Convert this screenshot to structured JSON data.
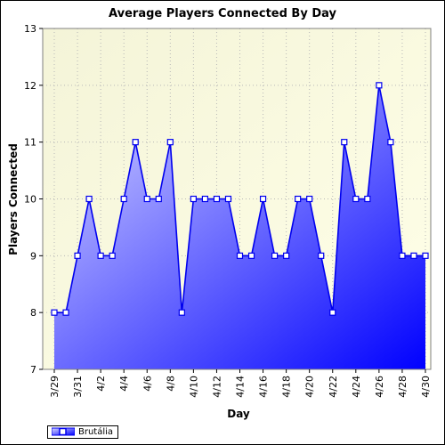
{
  "chart_data": {
    "type": "area",
    "title": "Average Players Connected By Day",
    "xlabel": "Day",
    "ylabel": "Players Connected",
    "ylim": [
      7,
      13
    ],
    "yticks": [
      7,
      8,
      9,
      10,
      11,
      12,
      13
    ],
    "x_tick_labels": [
      "3/29",
      "3/31",
      "4/2",
      "4/4",
      "4/6",
      "4/8",
      "4/10",
      "4/12",
      "4/14",
      "4/16",
      "4/18",
      "4/20",
      "4/22",
      "4/24",
      "4/26",
      "4/28",
      "4/30"
    ],
    "categories": [
      "3/29",
      "3/30",
      "3/31",
      "4/1",
      "4/2",
      "4/3",
      "4/4",
      "4/5",
      "4/6",
      "4/7",
      "4/8",
      "4/9",
      "4/10",
      "4/11",
      "4/12",
      "4/13",
      "4/14",
      "4/15",
      "4/16",
      "4/17",
      "4/18",
      "4/19",
      "4/20",
      "4/21",
      "4/22",
      "4/23",
      "4/24",
      "4/25",
      "4/26",
      "4/27",
      "4/28",
      "4/29",
      "4/30"
    ],
    "series": [
      {
        "name": "Brutália",
        "values": [
          8,
          8,
          9,
          10,
          9,
          9,
          10,
          11,
          10,
          10,
          11,
          8,
          10,
          10,
          10,
          10,
          9,
          9,
          10,
          9,
          9,
          10,
          10,
          9,
          8,
          11,
          10,
          10,
          12,
          11,
          9,
          9,
          9
        ]
      }
    ],
    "grid": true,
    "legend": "bottom-left"
  },
  "colors": {
    "line": "#0000ee",
    "fill_top": "#c8c8ff",
    "fill_bottom": "#0000ff",
    "plot_bg": "#ffffe0"
  }
}
